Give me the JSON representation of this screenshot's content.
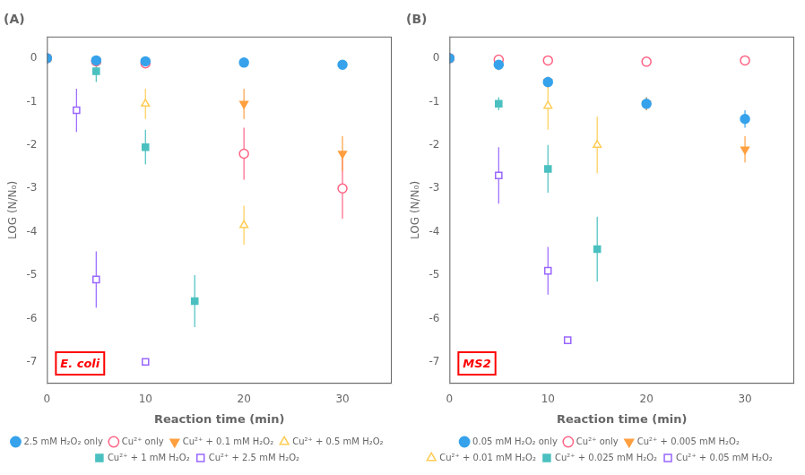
{
  "chart_data": [
    {
      "type": "scatter",
      "title": "(A)",
      "annotations": [
        {
          "text": "E. coli",
          "color": "red"
        }
      ],
      "xlabel": "Reaction time (min)",
      "ylabel": "LOG (N/N₀)",
      "xlim": [
        0,
        35
      ],
      "ylim": [
        -7.5,
        0.5
      ],
      "xticks": [
        0,
        10,
        20,
        30
      ],
      "yticks": [
        0,
        -1,
        -2,
        -3,
        -4,
        -5,
        -6,
        -7
      ],
      "grid": false,
      "legend": "bottom",
      "series": [
        {
          "name": "2.5 mM H₂O₂ only",
          "marker": "circle",
          "x": [
            0,
            5,
            10,
            20,
            30
          ],
          "values": [
            0,
            -0.05,
            -0.07,
            -0.1,
            -0.15
          ],
          "yerr": [
            0,
            0,
            0,
            0,
            0
          ]
        },
        {
          "name": "Cu²⁺ only",
          "marker": "circle-open",
          "x": [
            0,
            5,
            10,
            20,
            30
          ],
          "values": [
            0,
            -0.07,
            -0.12,
            -2.2,
            -3.0
          ],
          "yerr": [
            0,
            0,
            0,
            0.6,
            0.7
          ]
        },
        {
          "name": "Cu²⁺ + 0.1 mM H₂O₂",
          "marker": "triangle-down",
          "x": [
            0,
            5,
            10,
            20,
            30
          ],
          "values": [
            0,
            -0.07,
            -0.1,
            -1.05,
            -2.2
          ],
          "yerr": [
            0,
            0,
            0,
            0.35,
            0.4
          ]
        },
        {
          "name": "Cu²⁺ + 0.5 mM H₂O₂",
          "marker": "triangle-up-open",
          "x": [
            0,
            5,
            10,
            20
          ],
          "values": [
            0,
            -0.07,
            -1.05,
            -3.85
          ],
          "yerr": [
            0,
            0,
            0.35,
            0.45
          ]
        },
        {
          "name": "Cu²⁺ + 1 mM H₂O₂",
          "marker": "square",
          "x": [
            0,
            5,
            10,
            15
          ],
          "values": [
            0,
            -0.3,
            -2.05,
            -5.6
          ],
          "yerr": [
            0,
            0.25,
            0.4,
            0.6
          ]
        },
        {
          "name": "Cu²⁺ + 2.5 mM H₂O₂",
          "marker": "square-open",
          "x": [
            0,
            3,
            5,
            10
          ],
          "values": [
            0,
            -1.2,
            -5.1,
            -7.0
          ],
          "yerr": [
            0,
            0.5,
            0.65,
            0
          ]
        }
      ]
    },
    {
      "type": "scatter",
      "title": "(B)",
      "annotations": [
        {
          "text": "MS2",
          "color": "red"
        }
      ],
      "xlabel": "Reaction time (min)",
      "ylabel": "LOG (N/N₀)",
      "xlim": [
        0,
        35
      ],
      "ylim": [
        -7.5,
        0.5
      ],
      "xticks": [
        0,
        10,
        20,
        30
      ],
      "yticks": [
        0,
        -1,
        -2,
        -3,
        -4,
        -5,
        -6,
        -7
      ],
      "grid": false,
      "legend": "bottom",
      "series": [
        {
          "name": "0.05 mM H₂O₂ only",
          "marker": "circle",
          "x": [
            0,
            5,
            10,
            20,
            30
          ],
          "values": [
            0,
            -0.15,
            -0.55,
            -1.05,
            -1.4
          ],
          "yerr": [
            0,
            0,
            0.12,
            0.15,
            0.2
          ]
        },
        {
          "name": "Cu²⁺ only",
          "marker": "circle-open",
          "x": [
            0,
            5,
            10,
            20,
            30
          ],
          "values": [
            0,
            -0.03,
            -0.05,
            -0.08,
            -0.05
          ],
          "yerr": [
            0,
            0,
            0,
            0,
            0
          ]
        },
        {
          "name": "Cu²⁺ + 0.005 mM H₂O₂",
          "marker": "triangle-down",
          "x": [
            0,
            5,
            10,
            20,
            30
          ],
          "values": [
            0,
            -0.15,
            -0.55,
            -1.05,
            -2.1
          ],
          "yerr": [
            0,
            0.1,
            0.12,
            0.15,
            0.3
          ]
        },
        {
          "name": "Cu²⁺ + 0.01 mM H₂O₂",
          "marker": "triangle-up-open",
          "x": [
            0,
            5,
            10,
            15
          ],
          "values": [
            0,
            -0.1,
            -1.1,
            -2.0
          ],
          "yerr": [
            0,
            0.1,
            0.55,
            0.65
          ]
        },
        {
          "name": "Cu²⁺ + 0.025 mM H₂O₂",
          "marker": "square",
          "x": [
            0,
            5,
            10,
            15
          ],
          "values": [
            0,
            -1.05,
            -2.55,
            -4.4
          ],
          "yerr": [
            0,
            0.15,
            0.55,
            0.75
          ]
        },
        {
          "name": "Cu²⁺ + 0.05 mM H₂O₂",
          "marker": "square-open",
          "x": [
            0,
            5,
            10,
            12
          ],
          "values": [
            0,
            -2.7,
            -4.9,
            -6.5
          ],
          "yerr": [
            0,
            0.65,
            0.55,
            0
          ]
        }
      ]
    }
  ]
}
